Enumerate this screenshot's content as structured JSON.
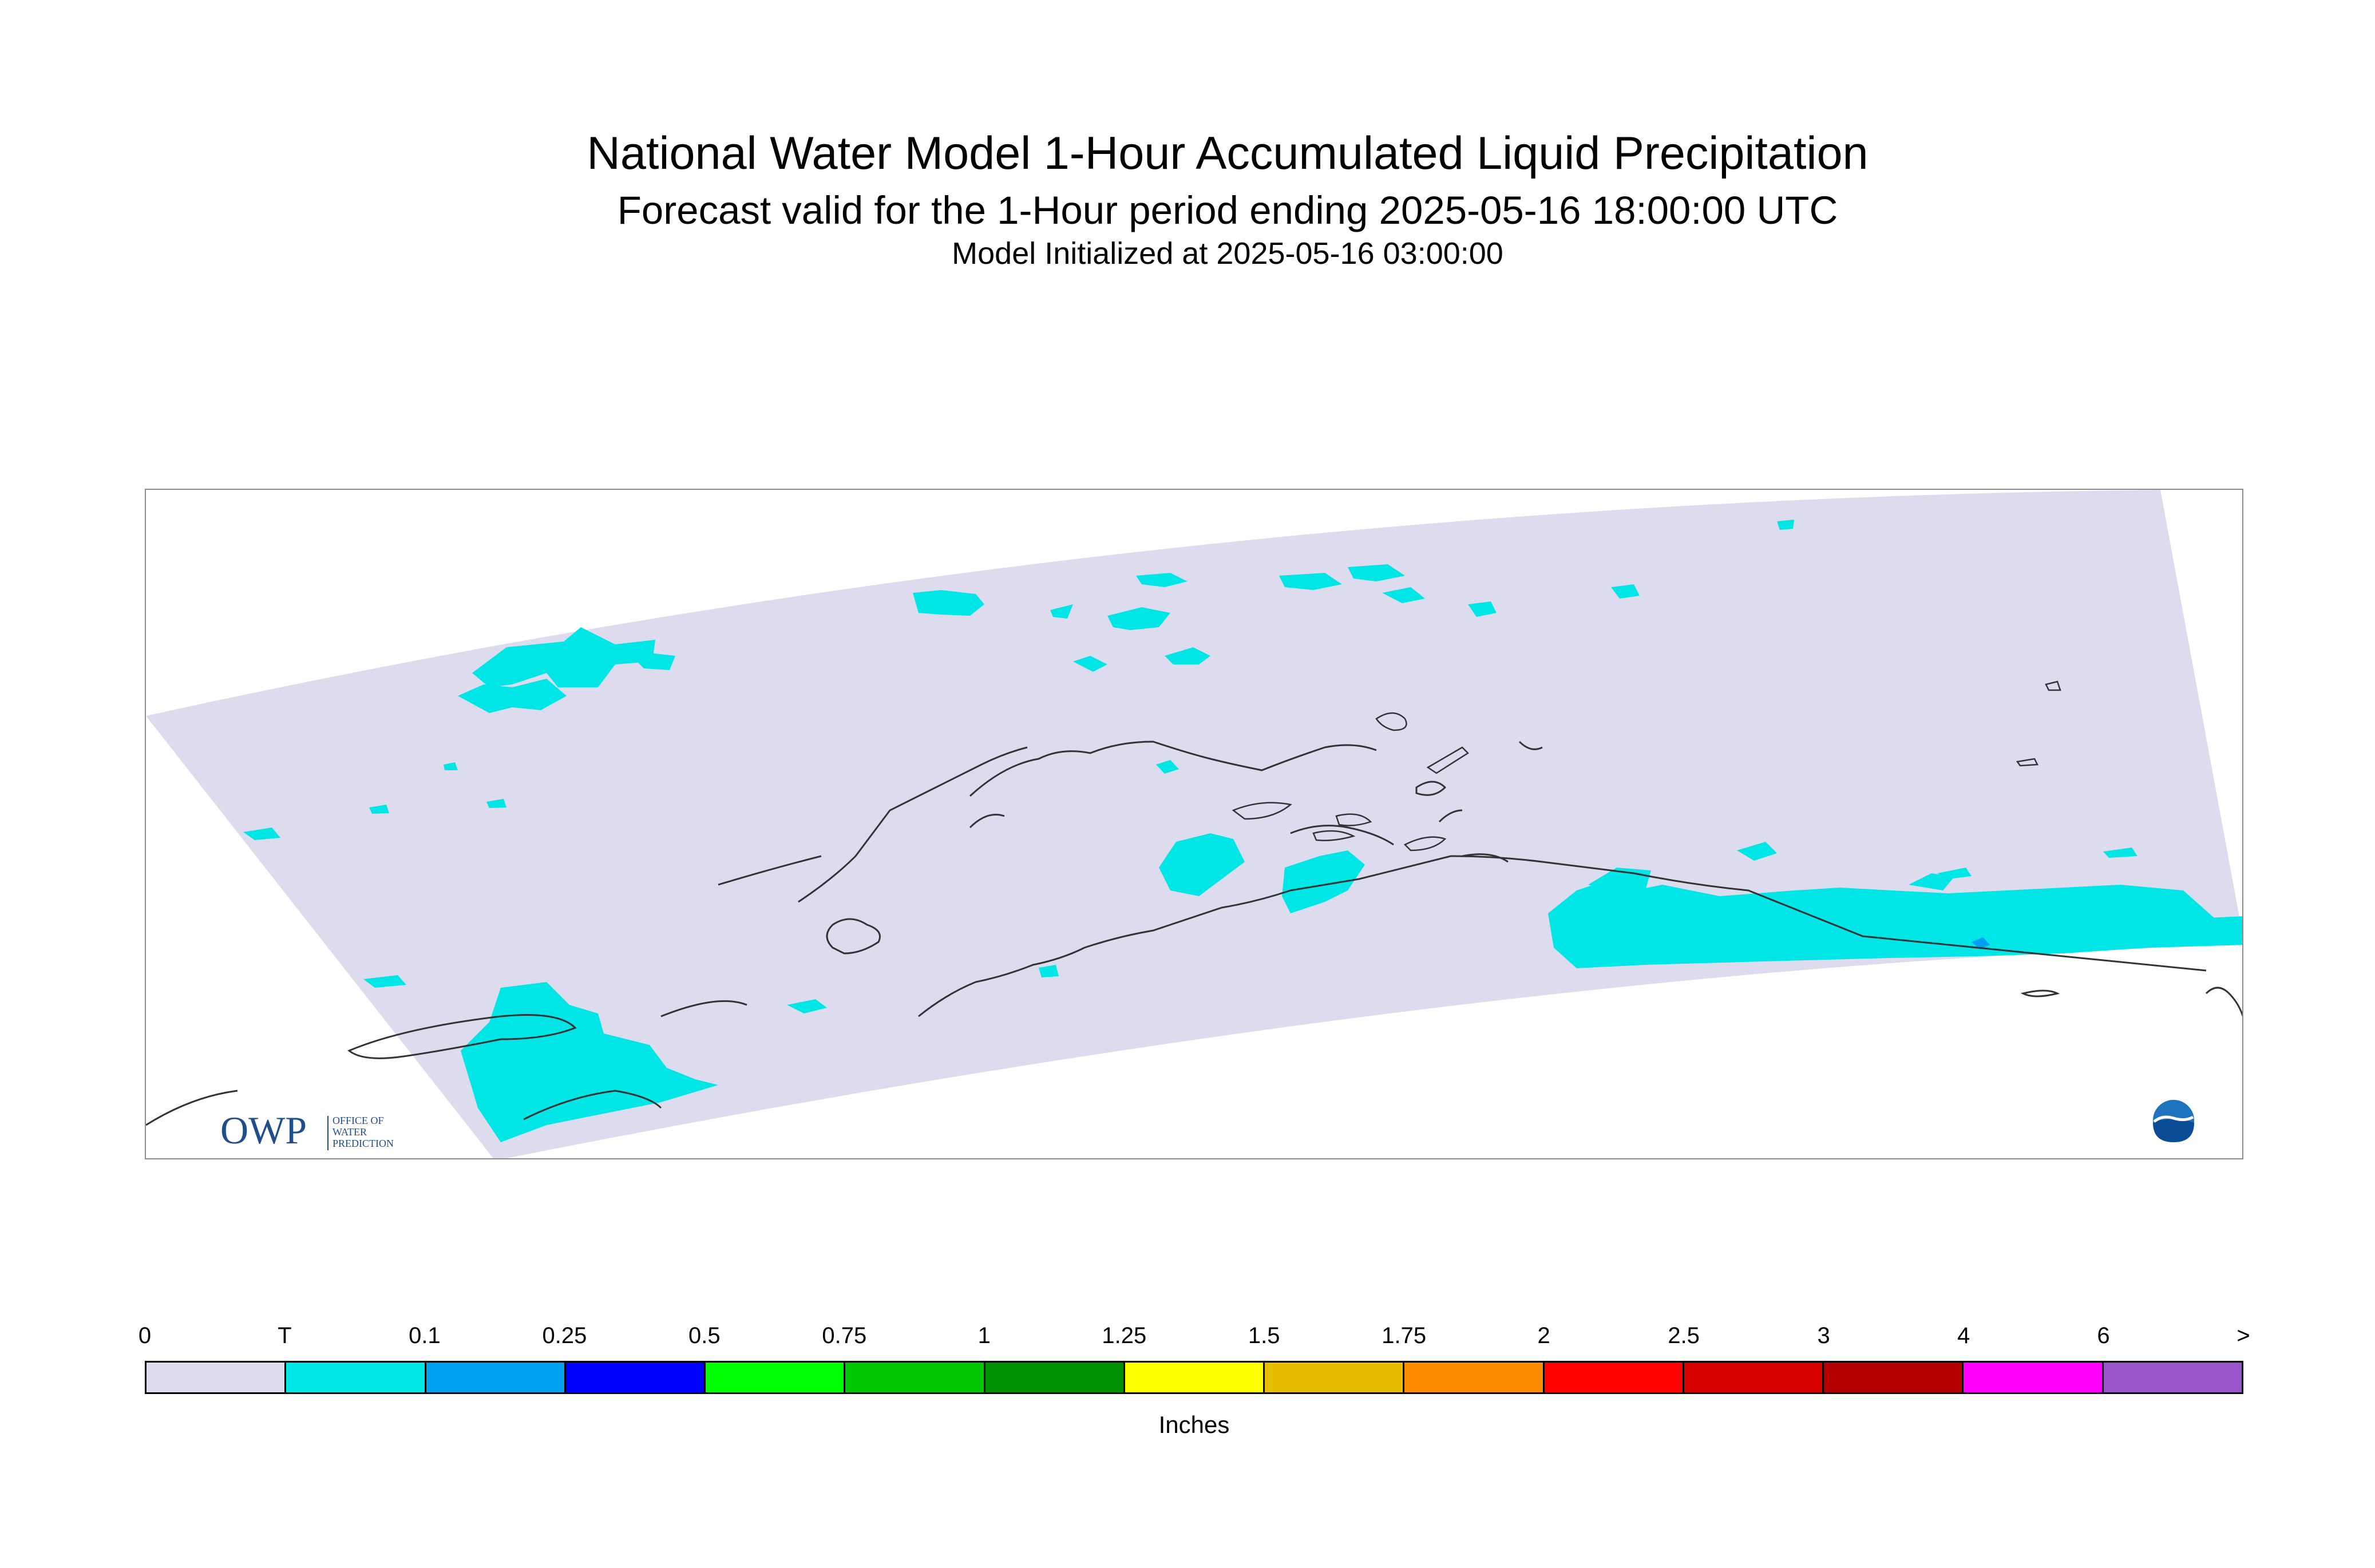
{
  "title": {
    "line1": "National Water Model 1-Hour Accumulated Liquid Precipitation",
    "line2": "Forecast valid for the 1-Hour period ending 2025-05-16 18:00:00 UTC",
    "line3": "Model Initialized at 2025-05-16 03:00:00"
  },
  "logo": {
    "letters": "OWP",
    "lines": [
      "OFFICE OF",
      "WATER",
      "PREDICTION"
    ]
  },
  "legend": {
    "ticks": [
      "0",
      "T",
      "0.1",
      "0.25",
      "0.5",
      "0.75",
      "1",
      "1.25",
      "1.5",
      "1.75",
      "2",
      "2.5",
      "3",
      "4",
      "6",
      ">"
    ],
    "colors": [
      "#dcdcee",
      "#00e6e6",
      "#00a0f0",
      "#0000ff",
      "#00ff00",
      "#00c800",
      "#009100",
      "#ffff00",
      "#e6be00",
      "#ff8c00",
      "#ff0000",
      "#d70000",
      "#b40000",
      "#ff00ff",
      "#9955c9"
    ],
    "units": "Inches"
  },
  "colors": {
    "domain_fill": "#dcdcee",
    "trace": "#00e6e6",
    "light": "#00a0f0",
    "coast": "#333333"
  }
}
